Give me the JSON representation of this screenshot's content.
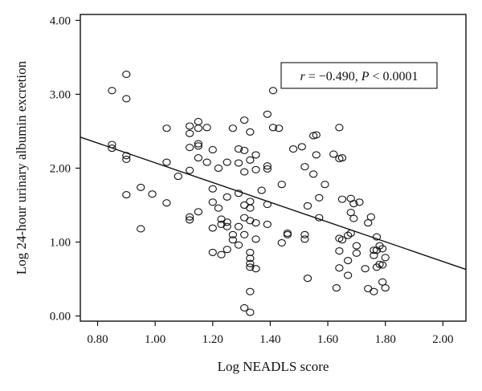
{
  "chart_data": {
    "type": "scatter",
    "xlabel": "Log NEADLS score",
    "ylabel": "Log 24-hour urinary albumin excretion",
    "xlim": [
      0.74,
      2.08
    ],
    "ylim": [
      -0.07,
      4.08
    ],
    "x_ticks": [
      0.8,
      1.0,
      1.2,
      1.4,
      1.6,
      1.8,
      2.0
    ],
    "y_ticks": [
      0.0,
      1.0,
      2.0,
      3.0,
      4.0
    ],
    "x_tick_labels": [
      "0.80",
      "1.00",
      "1.20",
      "1.40",
      "1.60",
      "1.80",
      "2.00"
    ],
    "y_tick_labels": [
      "0.00",
      "1.00",
      "2.00",
      "3.00",
      "4.00"
    ],
    "grid": false,
    "annotation": {
      "r_symbol": "r",
      "r_value": " = −0.490, ",
      "p_symbol": "P",
      "p_value": " < 0.0001",
      "placement": "upper-right"
    },
    "regression_line": {
      "x": [
        0.74,
        2.08
      ],
      "y": [
        2.42,
        0.63
      ]
    },
    "marker": "open-circle",
    "points": [
      {
        "x": 0.85,
        "y": 3.05
      },
      {
        "x": 0.85,
        "y": 2.32
      },
      {
        "x": 0.85,
        "y": 2.27
      },
      {
        "x": 0.9,
        "y": 3.27
      },
      {
        "x": 0.9,
        "y": 2.94
      },
      {
        "x": 0.9,
        "y": 2.17
      },
      {
        "x": 0.9,
        "y": 2.12
      },
      {
        "x": 0.9,
        "y": 1.64
      },
      {
        "x": 0.95,
        "y": 1.74
      },
      {
        "x": 0.95,
        "y": 1.18
      },
      {
        "x": 0.99,
        "y": 1.65
      },
      {
        "x": 1.04,
        "y": 2.54
      },
      {
        "x": 1.04,
        "y": 2.08
      },
      {
        "x": 1.04,
        "y": 1.53
      },
      {
        "x": 1.08,
        "y": 1.89
      },
      {
        "x": 1.12,
        "y": 2.57
      },
      {
        "x": 1.12,
        "y": 2.47
      },
      {
        "x": 1.12,
        "y": 2.28
      },
      {
        "x": 1.12,
        "y": 1.97
      },
      {
        "x": 1.12,
        "y": 1.34
      },
      {
        "x": 1.12,
        "y": 1.3
      },
      {
        "x": 1.15,
        "y": 2.63
      },
      {
        "x": 1.15,
        "y": 2.54
      },
      {
        "x": 1.15,
        "y": 2.33
      },
      {
        "x": 1.15,
        "y": 2.3
      },
      {
        "x": 1.15,
        "y": 2.14
      },
      {
        "x": 1.15,
        "y": 1.41
      },
      {
        "x": 1.18,
        "y": 2.55
      },
      {
        "x": 1.18,
        "y": 2.08
      },
      {
        "x": 1.2,
        "y": 2.25
      },
      {
        "x": 1.2,
        "y": 1.72
      },
      {
        "x": 1.2,
        "y": 1.54
      },
      {
        "x": 1.2,
        "y": 1.19
      },
      {
        "x": 1.2,
        "y": 0.86
      },
      {
        "x": 1.22,
        "y": 2.0
      },
      {
        "x": 1.22,
        "y": 1.46
      },
      {
        "x": 1.23,
        "y": 1.31
      },
      {
        "x": 1.23,
        "y": 1.24
      },
      {
        "x": 1.23,
        "y": 0.83
      },
      {
        "x": 1.25,
        "y": 2.08
      },
      {
        "x": 1.25,
        "y": 1.61
      },
      {
        "x": 1.25,
        "y": 1.27
      },
      {
        "x": 1.25,
        "y": 1.21
      },
      {
        "x": 1.25,
        "y": 0.9
      },
      {
        "x": 1.27,
        "y": 2.54
      },
      {
        "x": 1.27,
        "y": 1.1
      },
      {
        "x": 1.27,
        "y": 1.03
      },
      {
        "x": 1.29,
        "y": 2.26
      },
      {
        "x": 1.29,
        "y": 2.07
      },
      {
        "x": 1.29,
        "y": 1.66
      },
      {
        "x": 1.29,
        "y": 1.21
      },
      {
        "x": 1.29,
        "y": 0.96
      },
      {
        "x": 1.31,
        "y": 2.65
      },
      {
        "x": 1.31,
        "y": 2.24
      },
      {
        "x": 1.31,
        "y": 1.95
      },
      {
        "x": 1.31,
        "y": 1.5
      },
      {
        "x": 1.31,
        "y": 1.33
      },
      {
        "x": 1.31,
        "y": 1.1
      },
      {
        "x": 1.31,
        "y": 0.11
      },
      {
        "x": 1.33,
        "y": 1.55
      },
      {
        "x": 1.33,
        "y": 1.46
      },
      {
        "x": 1.33,
        "y": 0.86
      },
      {
        "x": 1.33,
        "y": 0.78
      },
      {
        "x": 1.33,
        "y": 0.71
      },
      {
        "x": 1.33,
        "y": 0.66
      },
      {
        "x": 1.33,
        "y": 0.33
      },
      {
        "x": 1.33,
        "y": 0.05
      },
      {
        "x": 1.33,
        "y": 2.49
      },
      {
        "x": 1.33,
        "y": 2.11
      },
      {
        "x": 1.33,
        "y": 1.29
      },
      {
        "x": 1.35,
        "y": 2.18
      },
      {
        "x": 1.35,
        "y": 1.98
      },
      {
        "x": 1.35,
        "y": 1.26
      },
      {
        "x": 1.35,
        "y": 1.04
      },
      {
        "x": 1.35,
        "y": 0.64
      },
      {
        "x": 1.37,
        "y": 1.7
      },
      {
        "x": 1.39,
        "y": 2.73
      },
      {
        "x": 1.39,
        "y": 2.03
      },
      {
        "x": 1.39,
        "y": 1.99
      },
      {
        "x": 1.39,
        "y": 1.51
      },
      {
        "x": 1.39,
        "y": 1.24
      },
      {
        "x": 1.41,
        "y": 3.05
      },
      {
        "x": 1.41,
        "y": 2.55
      },
      {
        "x": 1.43,
        "y": 2.54
      },
      {
        "x": 1.44,
        "y": 1.78
      },
      {
        "x": 1.44,
        "y": 0.99
      },
      {
        "x": 1.46,
        "y": 1.12
      },
      {
        "x": 1.46,
        "y": 1.1
      },
      {
        "x": 1.48,
        "y": 2.26
      },
      {
        "x": 1.51,
        "y": 2.29
      },
      {
        "x": 1.52,
        "y": 2.02
      },
      {
        "x": 1.52,
        "y": 1.1
      },
      {
        "x": 1.52,
        "y": 1.04
      },
      {
        "x": 1.53,
        "y": 1.49
      },
      {
        "x": 1.53,
        "y": 0.51
      },
      {
        "x": 1.55,
        "y": 2.44
      },
      {
        "x": 1.55,
        "y": 1.92
      },
      {
        "x": 1.56,
        "y": 2.45
      },
      {
        "x": 1.56,
        "y": 2.18
      },
      {
        "x": 1.57,
        "y": 1.6
      },
      {
        "x": 1.57,
        "y": 1.33
      },
      {
        "x": 1.59,
        "y": 1.78
      },
      {
        "x": 1.62,
        "y": 2.19
      },
      {
        "x": 1.63,
        "y": 0.38
      },
      {
        "x": 1.64,
        "y": 2.55
      },
      {
        "x": 1.64,
        "y": 2.13
      },
      {
        "x": 1.64,
        "y": 1.05
      },
      {
        "x": 1.64,
        "y": 0.88
      },
      {
        "x": 1.64,
        "y": 0.65
      },
      {
        "x": 1.65,
        "y": 2.14
      },
      {
        "x": 1.65,
        "y": 1.58
      },
      {
        "x": 1.65,
        "y": 1.03
      },
      {
        "x": 1.67,
        "y": 1.09
      },
      {
        "x": 1.67,
        "y": 0.75
      },
      {
        "x": 1.67,
        "y": 0.55
      },
      {
        "x": 1.68,
        "y": 1.59
      },
      {
        "x": 1.68,
        "y": 1.4
      },
      {
        "x": 1.68,
        "y": 1.12
      },
      {
        "x": 1.69,
        "y": 1.52
      },
      {
        "x": 1.69,
        "y": 1.32
      },
      {
        "x": 1.7,
        "y": 0.95
      },
      {
        "x": 1.7,
        "y": 0.85
      },
      {
        "x": 1.71,
        "y": 1.54
      },
      {
        "x": 1.73,
        "y": 0.64
      },
      {
        "x": 1.74,
        "y": 0.37
      },
      {
        "x": 1.74,
        "y": 1.26
      },
      {
        "x": 1.75,
        "y": 1.34
      },
      {
        "x": 1.76,
        "y": 0.89
      },
      {
        "x": 1.76,
        "y": 0.82
      },
      {
        "x": 1.76,
        "y": 0.33
      },
      {
        "x": 1.77,
        "y": 1.07
      },
      {
        "x": 1.77,
        "y": 0.89
      },
      {
        "x": 1.77,
        "y": 0.66
      },
      {
        "x": 1.78,
        "y": 0.95
      },
      {
        "x": 1.78,
        "y": 0.7
      },
      {
        "x": 1.79,
        "y": 0.91
      },
      {
        "x": 1.79,
        "y": 0.69
      },
      {
        "x": 1.79,
        "y": 0.46
      },
      {
        "x": 1.8,
        "y": 0.79
      },
      {
        "x": 1.8,
        "y": 0.38
      }
    ]
  }
}
